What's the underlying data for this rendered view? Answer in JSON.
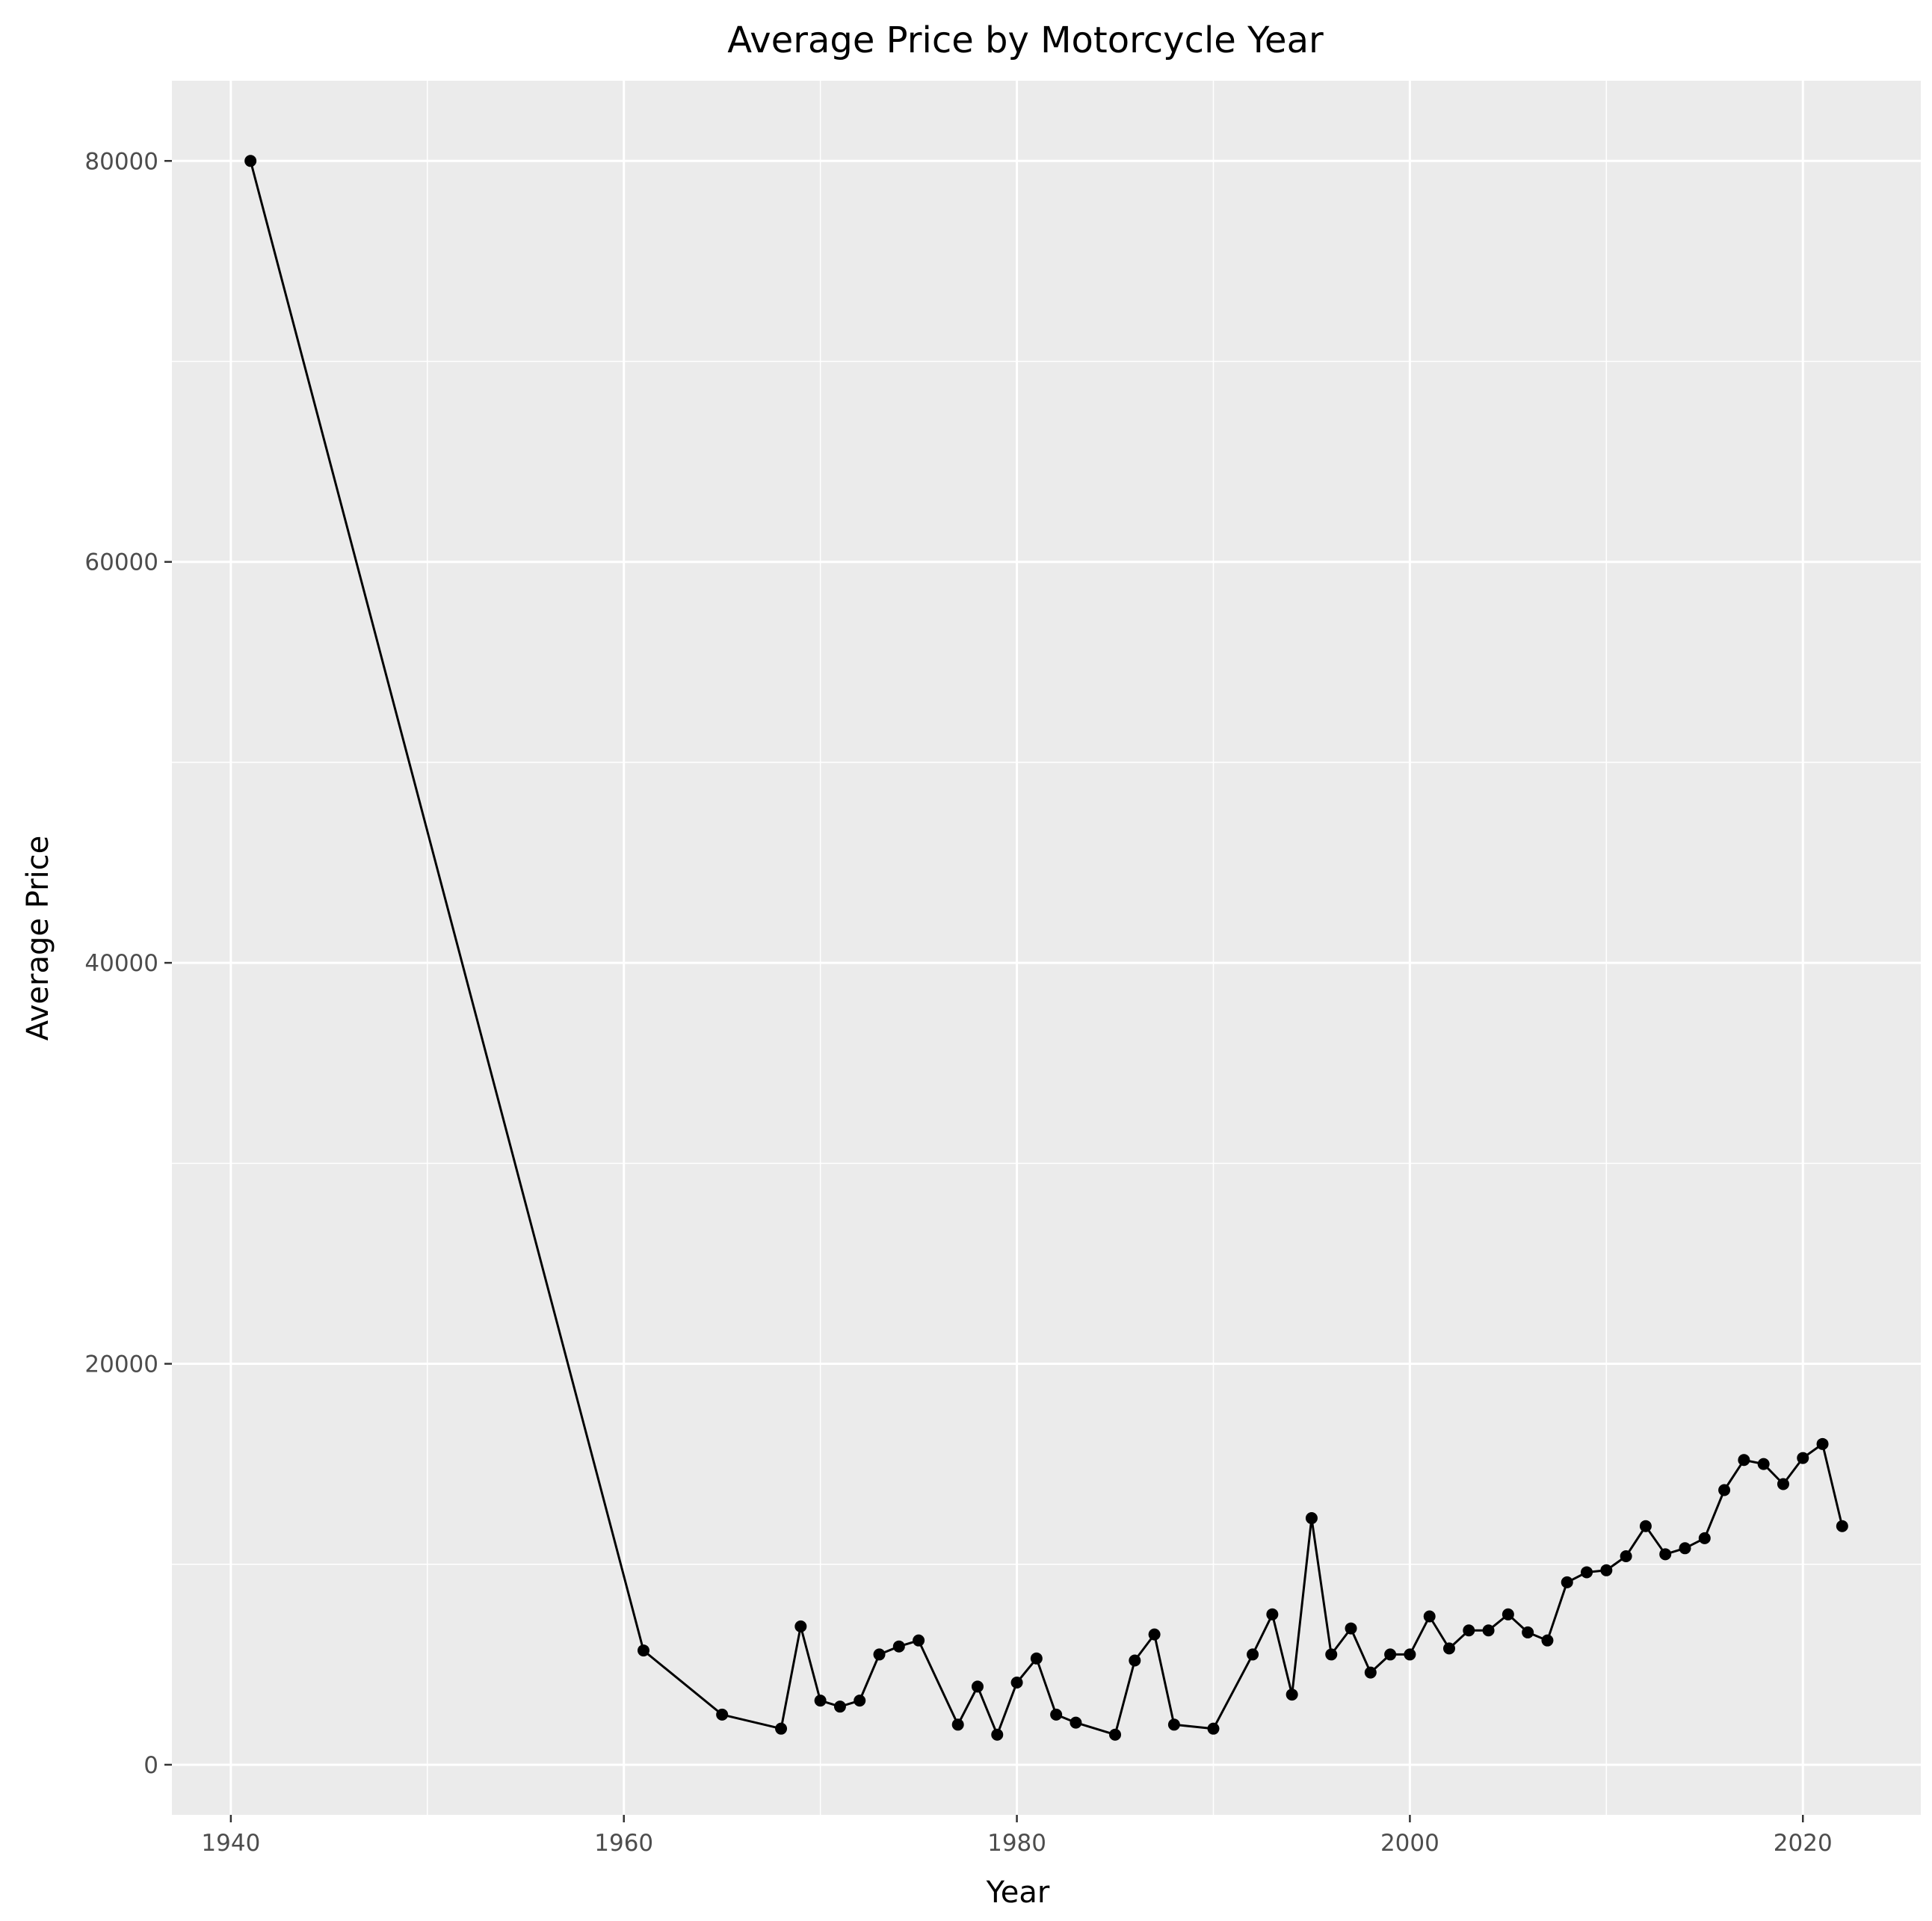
{
  "chart_data": {
    "type": "line",
    "title": "Average Price by Motorcycle Year",
    "xlabel": "Year",
    "ylabel": "Average Price",
    "xlim": [
      1937,
      2026
    ],
    "ylim": [
      -2500,
      84000
    ],
    "x_ticks": [
      1940,
      1960,
      1980,
      2000,
      2020
    ],
    "y_ticks": [
      0,
      20000,
      40000,
      60000,
      80000
    ],
    "x_tick_labels": [
      "1940",
      "1960",
      "1980",
      "2000",
      "2020"
    ],
    "y_tick_labels": [
      "0",
      "20000",
      "40000",
      "60000",
      "80000"
    ],
    "grid": true,
    "markers": true,
    "colors": {
      "panel": "#ebebeb",
      "grid": "#ffffff",
      "series": "#000000",
      "tick_text": "#4d4d4d"
    },
    "series": [
      {
        "x": [
          1941,
          1961,
          1965,
          1968,
          1969,
          1970,
          1971,
          1972,
          1973,
          1974,
          1975,
          1977,
          1978,
          1979,
          1980,
          1981,
          1982,
          1983,
          1985,
          1986,
          1987,
          1988,
          1990,
          1992,
          1993,
          1994,
          1995,
          1996,
          1997,
          1998,
          1999,
          2000,
          2001,
          2002,
          2003,
          2004,
          2005,
          2006,
          2007,
          2008,
          2009,
          2010,
          2011,
          2012,
          2013,
          2014,
          2015,
          2016,
          2017,
          2018,
          2019,
          2020,
          2021,
          2022
        ],
        "y": [
          80000,
          5700,
          2500,
          1800,
          6900,
          3200,
          2900,
          3200,
          5500,
          5900,
          6200,
          2000,
          3900,
          1500,
          4100,
          5300,
          2500,
          2100,
          1500,
          5200,
          6500,
          2000,
          1800,
          5500,
          7500,
          3500,
          12300,
          5500,
          6800,
          4600,
          5500,
          5500,
          7400,
          5800,
          6700,
          6700,
          7500,
          6600,
          6200,
          9100,
          9600,
          9700,
          10400,
          11900,
          10500,
          10800,
          11300,
          13700,
          15200,
          15000,
          14000,
          15300,
          16000,
          11900
        ]
      }
    ]
  }
}
